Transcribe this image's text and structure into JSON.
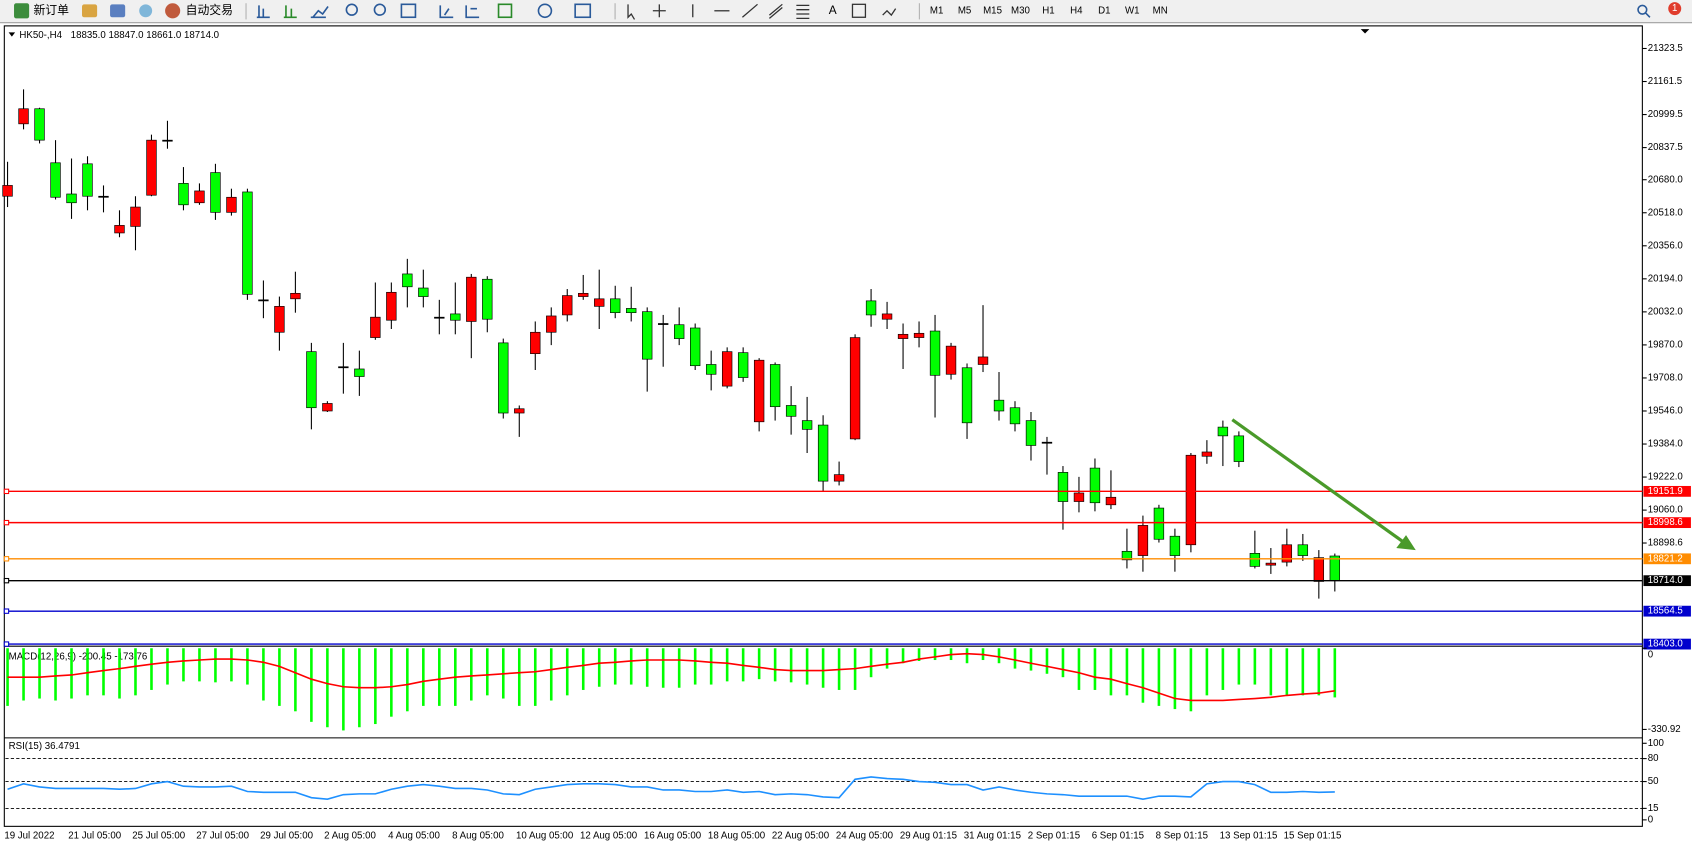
{
  "toolbar": {
    "new_order": "新订单",
    "auto_trading": "自动交易",
    "timeframes": [
      "M1",
      "M5",
      "M15",
      "M30",
      "H1",
      "H4",
      "D1",
      "W1",
      "MN"
    ],
    "notification_count": 1
  },
  "chart_data": [
    {
      "type": "candlestick",
      "title": "HK50-,H4",
      "ohlc": "18835.0 18847.0 18661.0 18714.0",
      "categories": [
        "19 Jul 2022",
        null,
        null,
        null,
        "21 Jul 05:00",
        null,
        null,
        null,
        "25 Jul 05:00",
        null,
        null,
        null,
        "27 Jul 05:00",
        null,
        null,
        null,
        "29 Jul 05:00",
        null,
        null,
        null,
        "2 Aug 05:00",
        null,
        null,
        null,
        "4 Aug 05:00",
        null,
        null,
        null,
        "8 Aug 05:00",
        null,
        null,
        null,
        "10 Aug 05:00",
        null,
        null,
        null,
        "12 Aug 05:00",
        null,
        null,
        null,
        "16 Aug 05:00",
        null,
        null,
        null,
        "18 Aug 05:00",
        null,
        null,
        null,
        "22 Aug 05:00",
        null,
        null,
        null,
        "24 Aug 05:00",
        null,
        null,
        null,
        "29 Aug 01:15",
        null,
        null,
        null,
        "31 Aug 01:15",
        null,
        null,
        null,
        "2 Sep 01:15",
        null,
        null,
        null,
        "6 Sep 01:15",
        null,
        null,
        null,
        "8 Sep 01:15",
        null,
        null,
        null,
        "13 Sep 01:15",
        null,
        null,
        null,
        "15 Sep 01:15",
        null,
        null,
        null
      ],
      "open": [
        20599,
        20954,
        21028,
        20763,
        20610,
        20758,
        20599,
        20419,
        20451,
        20604,
        20874,
        20662,
        20567,
        20715,
        20520,
        20620,
        20091,
        19932,
        20096,
        19837,
        19546,
        19763,
        19752,
        19906,
        19991,
        20218,
        20149,
        20006,
        20022,
        19985,
        20192,
        19880,
        19536,
        19827,
        19932,
        20017,
        20107,
        20059,
        20096,
        20049,
        20033,
        19975,
        19969,
        19953,
        19774,
        19668,
        19832,
        19493,
        19774,
        19573,
        19499,
        19477,
        19202,
        19409,
        20086,
        19996,
        19901,
        19906,
        19938,
        19726,
        19758,
        19774,
        19599,
        19562,
        19499,
        19393,
        19245,
        19102,
        19266,
        19086,
        18858,
        18837,
        19070,
        18932,
        18890,
        19324,
        19467,
        19424,
        18848,
        18790,
        18805,
        18890,
        18710,
        18835
      ],
      "high": [
        20768,
        21123,
        21033,
        20874,
        20784,
        20795,
        20652,
        20530,
        20599,
        20901,
        20969,
        20742,
        20662,
        20758,
        20636,
        20636,
        20186,
        20107,
        20229,
        19880,
        19594,
        19880,
        19842,
        20176,
        20176,
        20292,
        20239,
        20091,
        20176,
        20218,
        20207,
        19901,
        19573,
        19985,
        20054,
        20144,
        20213,
        20239,
        20160,
        20155,
        20054,
        20017,
        20054,
        19975,
        19842,
        19858,
        19858,
        19805,
        19784,
        19668,
        19615,
        19525,
        19298,
        19922,
        20144,
        20081,
        19975,
        19985,
        20017,
        19880,
        19779,
        20065,
        19737,
        19594,
        19541,
        19419,
        19276,
        19223,
        19313,
        19255,
        18969,
        19033,
        19086,
        18969,
        19340,
        19403,
        19499,
        19446,
        18959,
        18874,
        18969,
        18943,
        18864,
        18847
      ],
      "low": [
        20546,
        20927,
        20858,
        20583,
        20488,
        20530,
        20520,
        20398,
        20334,
        20599,
        20832,
        20530,
        20557,
        20483,
        20504,
        20091,
        20001,
        19842,
        20028,
        19456,
        19541,
        19631,
        19620,
        19895,
        19948,
        20054,
        20054,
        19922,
        19922,
        19805,
        19932,
        19509,
        19419,
        19747,
        19869,
        19985,
        20091,
        19948,
        20001,
        19985,
        19641,
        19763,
        19869,
        19747,
        19647,
        19657,
        19689,
        19446,
        19499,
        19430,
        19340,
        19149,
        19181,
        19403,
        19959,
        19948,
        19752,
        19858,
        19514,
        19700,
        19409,
        19737,
        19499,
        19446,
        19303,
        19234,
        18964,
        19049,
        19054,
        19065,
        18774,
        18758,
        18901,
        18758,
        18853,
        19287,
        19276,
        19271,
        18774,
        18747,
        18784,
        18811,
        18626,
        18661
      ],
      "close": [
        20652,
        21028,
        20874,
        20594,
        20567,
        20599,
        20599,
        20456,
        20546,
        20874,
        20874,
        20557,
        20625,
        20520,
        20594,
        20118,
        20091,
        20059,
        20123,
        19562,
        19583,
        19763,
        19715,
        20006,
        20128,
        20155,
        20107,
        20006,
        19991,
        20202,
        19996,
        19536,
        19557,
        19932,
        20012,
        20112,
        20123,
        20096,
        20028,
        20028,
        19800,
        19975,
        19901,
        19768,
        19726,
        19837,
        19710,
        19795,
        19567,
        19520,
        19456,
        19202,
        19234,
        19906,
        20017,
        20022,
        19922,
        19927,
        19721,
        19864,
        19488,
        19811,
        19546,
        19483,
        19377,
        19393,
        19102,
        19144,
        19096,
        19123,
        18816,
        18985,
        18917,
        18837,
        19329,
        19345,
        19424,
        19298,
        18784,
        18800,
        18890,
        18837,
        18827,
        18714
      ],
      "up_color": "#ff0000",
      "down_color": "#00ff00",
      "ylim": [
        18398,
        21429
      ],
      "yticks": [
        21323.5,
        21161.5,
        20999.5,
        20837.5,
        {
          "value": 20680,
          "label": "20680.0"
        },
        {
          "value": 20518,
          "label": "20518.0"
        },
        {
          "value": 20356,
          "label": "20356.0"
        },
        {
          "value": 20194,
          "label": "20194.0"
        },
        {
          "value": 20032,
          "label": "20032.0"
        },
        {
          "value": 19870,
          "label": "19870.0"
        },
        {
          "value": 19708,
          "label": "19708.0"
        },
        {
          "value": 19546,
          "label": "19546.0"
        },
        {
          "value": 19384,
          "label": "19384.0"
        },
        {
          "value": 19222,
          "label": "19222.0"
        },
        {
          "value": 19060,
          "label": "19060.0"
        },
        18898.6
      ],
      "levels": [
        {
          "value": 19151.9,
          "color": "#ff0000"
        },
        {
          "value": 18998.6,
          "color": "#ff0000"
        },
        {
          "value": 18821.2,
          "color": "#ff8c00"
        },
        {
          "value": 18714,
          "label": "18714.0",
          "color": "#000000"
        },
        {
          "value": 18564.5,
          "color": "#0000cd"
        },
        {
          "value": 18403,
          "label": "18403.0",
          "color": "#0000cd"
        }
      ]
    },
    {
      "type": "macd",
      "title": "MACD(12,26,9) -200.45 -173.76",
      "histogram": {
        "color": "#00ff00",
        "values": [
          -235,
          -213,
          -205,
          -213,
          -205,
          -192,
          -192,
          -205,
          -192,
          -170,
          -148,
          -135,
          -135,
          -139,
          -135,
          -148,
          -213,
          -235,
          -257,
          -300,
          -322,
          -335,
          -322,
          -309,
          -279,
          -257,
          -235,
          -235,
          -235,
          -213,
          -192,
          -205,
          -235,
          -235,
          -213,
          -192,
          -170,
          -157,
          -148,
          -148,
          -157,
          -161,
          -161,
          -148,
          -148,
          -135,
          -135,
          -126,
          -135,
          -139,
          -148,
          -161,
          -170,
          -170,
          -118,
          -83,
          -61,
          -52,
          -48,
          -48,
          -61,
          -48,
          -61,
          -83,
          -91,
          -104,
          -118,
          -170,
          -170,
          -192,
          -192,
          -222,
          -235,
          -248,
          -257,
          -192,
          -170,
          -148,
          -148,
          -192,
          -192,
          -192,
          -192,
          -200.45
        ]
      },
      "signal": {
        "color": "#ff0000",
        "values": [
          -118,
          -118,
          -118,
          -113,
          -109,
          -100,
          -91,
          -83,
          -74,
          -65,
          -57,
          -52,
          -48,
          -44,
          -44,
          -48,
          -57,
          -74,
          -100,
          -126,
          -144,
          -157,
          -161,
          -161,
          -157,
          -148,
          -135,
          -126,
          -118,
          -113,
          -109,
          -104,
          -100,
          -96,
          -87,
          -78,
          -70,
          -61,
          -57,
          -52,
          -48,
          -48,
          -48,
          -52,
          -57,
          -61,
          -70,
          -78,
          -87,
          -91,
          -91,
          -91,
          -87,
          -83,
          -74,
          -65,
          -57,
          -44,
          -35,
          -26,
          -22,
          -26,
          -35,
          -48,
          -61,
          -74,
          -87,
          -100,
          -118,
          -126,
          -144,
          -161,
          -183,
          -205,
          -213,
          -213,
          -213,
          -209,
          -205,
          -200,
          -192,
          -187,
          -183,
          -173.76
        ]
      },
      "ylim": [
        -361,
        4
      ],
      "yticks": [
        0,
        -330.92
      ]
    },
    {
      "type": "rsi",
      "title": "RSI(15) 36.4791",
      "color": "#1e90ff",
      "values": [
        40,
        47,
        43,
        41,
        41,
        41,
        41,
        40,
        41,
        47,
        50,
        44,
        43,
        43,
        44,
        37,
        36,
        36,
        36,
        29,
        27,
        33,
        34,
        34,
        40,
        44,
        46,
        44,
        41,
        41,
        39,
        34,
        33,
        40,
        43,
        46,
        47,
        47,
        46,
        43,
        43,
        39,
        39,
        37,
        37,
        39,
        36,
        37,
        33,
        34,
        33,
        30,
        29,
        53,
        56,
        54,
        53,
        50,
        49,
        46,
        46,
        39,
        43,
        39,
        36,
        34,
        33,
        31,
        31,
        31,
        31,
        27,
        31,
        31,
        30,
        47,
        50,
        50,
        46,
        36,
        36,
        37,
        36,
        36.4791
      ],
      "ylim": [
        0,
        100
      ],
      "yticks": [
        100,
        80,
        50,
        15,
        0
      ],
      "levels": [
        80,
        50,
        15
      ]
    }
  ]
}
